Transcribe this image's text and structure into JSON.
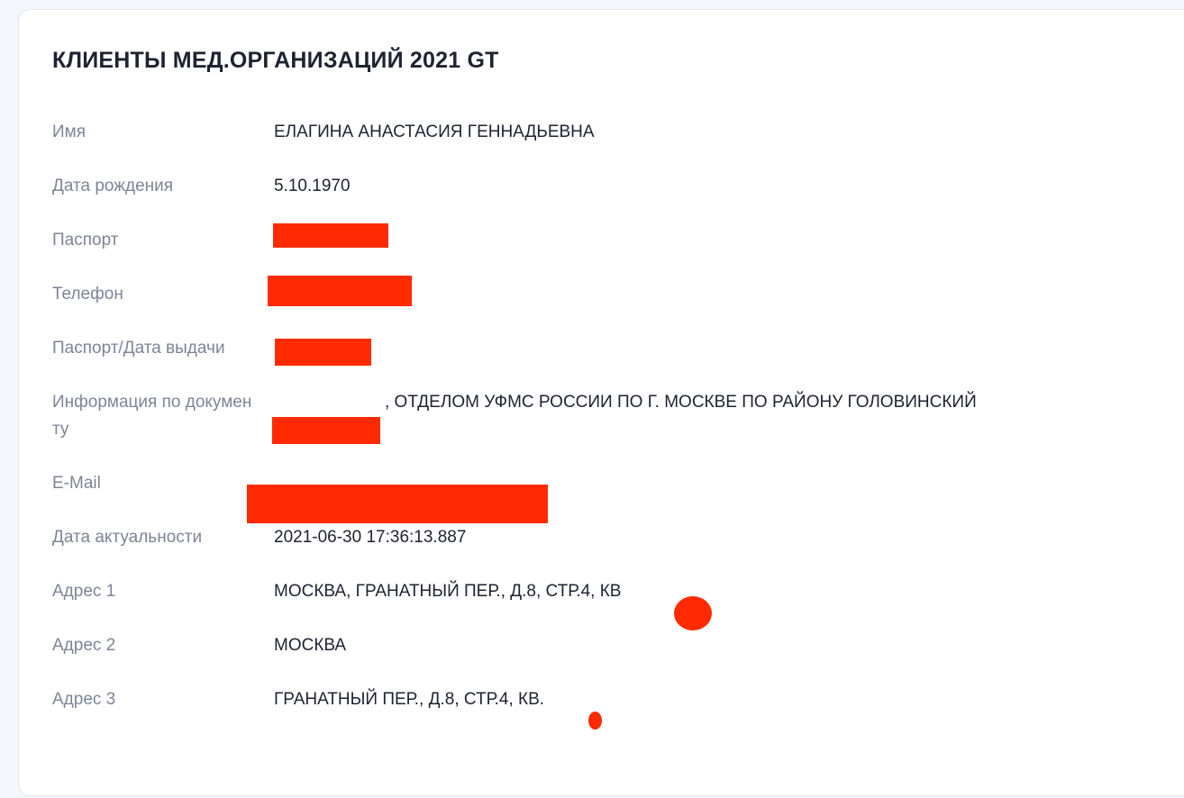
{
  "title": "КЛИЕНТЫ МЕД.ОРГАНИЗАЦИЙ 2021 GT",
  "fields": [
    {
      "label": "Имя",
      "value": "ЕЛАГИНА АНАСТАСИЯ ГЕННАДЬЕВНА"
    },
    {
      "label": "Дата рождения",
      "value": "5.10.1970"
    },
    {
      "label": "Паспорт",
      "value": ""
    },
    {
      "label": "Телефон",
      "value": ""
    },
    {
      "label": "Паспорт/Дата выдачи",
      "value": ""
    },
    {
      "label": "Информация по документу",
      "value": ", ОТДЕЛОМ УФМС РОССИИ ПО Г. МОСКВЕ ПО РАЙОНУ ГОЛОВИНСКИЙ"
    },
    {
      "label": "E-Mail",
      "value": ""
    },
    {
      "label": "Дата актуальности",
      "value": "2021-06-30 17:36:13.887"
    },
    {
      "label": "Адрес 1",
      "value": "МОСКВА, ГРАНАТНЫЙ ПЕР., Д.8, СТР.4, КВ"
    },
    {
      "label": "Адрес 2",
      "value": "МОСКВА"
    },
    {
      "label": "Адрес 3",
      "value": "ГРАНАТНЫЙ ПЕР., Д.8, СТР.4, КВ."
    }
  ],
  "colors": {
    "redaction": "#ff2a00",
    "label": "#7d8596",
    "value": "#1e2330"
  }
}
